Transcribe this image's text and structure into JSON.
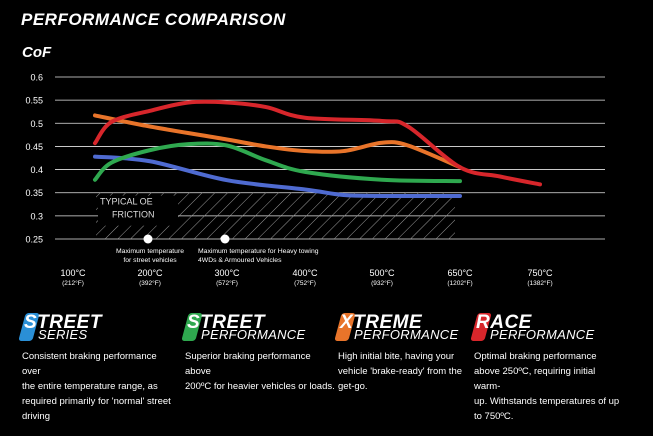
{
  "header": {
    "title": "PERFORMANCE COMPARISON"
  },
  "chart_data": {
    "type": "line",
    "ylabel": "CoF",
    "ylim": [
      0.25,
      0.6
    ],
    "ytick_labels": [
      "0.6",
      "0.55",
      "0.5",
      "0.45",
      "0.4",
      "0.35",
      "0.3",
      "0.25"
    ],
    "ytick_values": [
      0.6,
      0.55,
      0.5,
      0.45,
      0.4,
      0.35,
      0.3,
      0.25
    ],
    "categories": [
      {
        "c": "100°C",
        "f": "(212°F)"
      },
      {
        "c": "200°C",
        "f": "(392°F)"
      },
      {
        "c": "300°C",
        "f": "(572°F)"
      },
      {
        "c": "400°C",
        "f": "(752°F)"
      },
      {
        "c": "500°C",
        "f": "(932°F)"
      },
      {
        "c": "650°C",
        "f": "(1202°F)"
      },
      {
        "c": "750°C",
        "f": "(1382°F)"
      }
    ],
    "series": [
      {
        "key": "street-series",
        "color": "#4f6bd1",
        "x": [
          100,
          200,
          300,
          400,
          450,
          500,
          650
        ],
        "y": [
          0.428,
          0.418,
          0.377,
          0.357,
          0.345,
          0.343,
          0.343
        ]
      },
      {
        "key": "street-performance",
        "color": "#2fa84f",
        "x": [
          100,
          150,
          200,
          250,
          300,
          350,
          400,
          500,
          650
        ],
        "y": [
          0.378,
          0.415,
          0.442,
          0.455,
          0.452,
          0.42,
          0.395,
          0.378,
          0.375
        ]
      },
      {
        "key": "xtreme-performance",
        "color": "#e8742a",
        "x": [
          100,
          200,
          300,
          350,
          400,
          450,
          500,
          550,
          650
        ],
        "y": [
          0.517,
          0.493,
          0.465,
          0.45,
          0.44,
          0.44,
          0.458,
          0.452,
          0.405
        ]
      },
      {
        "key": "race-performance",
        "color": "#d7262b",
        "x": [
          100,
          150,
          200,
          250,
          300,
          350,
          400,
          500,
          550,
          650,
          700,
          750
        ],
        "y": [
          0.457,
          0.503,
          0.527,
          0.545,
          0.545,
          0.535,
          0.512,
          0.505,
          0.493,
          0.405,
          0.385,
          0.368
        ]
      }
    ],
    "typical_oe": {
      "label_line1": "TYPICAL OE",
      "label_line2": "FRICTION",
      "y_top": 0.35,
      "y_bottom": 0.25,
      "x_start": 100,
      "x_end": 650
    },
    "annotations": [
      {
        "x": 200,
        "lines": [
          "Maximum temperature",
          "for street vehicles"
        ]
      },
      {
        "x": 300,
        "lines": [
          "Maximum temperature for Heavy towing",
          "4WDs & Armoured Vehicles"
        ]
      }
    ]
  },
  "categories": [
    {
      "badge_color": "#2a8fd6",
      "word1": "STREET",
      "word2": "SERIES",
      "desc": [
        "Consistent braking performance over",
        "the entire temperature range, as",
        "required primarily for 'normal' street",
        "driving"
      ]
    },
    {
      "badge_color": "#2fa84f",
      "word1": "STREET",
      "word2": "PERFORMANCE",
      "desc": [
        "Superior braking performance above",
        "200ºC for heavier vehicles or loads."
      ]
    },
    {
      "badge_color": "#e8742a",
      "word1": "XTREME",
      "word2": "PERFORMANCE",
      "desc": [
        "High initial bite, having your",
        "vehicle 'brake-ready' from the",
        "get-go."
      ]
    },
    {
      "badge_color": "#d7262b",
      "word1": "RACE",
      "word2": "PERFORMANCE",
      "desc": [
        "Optimal braking performance",
        "above 250ºC, requiring initial warm-",
        "up. Withstands temperatures of up",
        "to 750ºC."
      ]
    }
  ]
}
